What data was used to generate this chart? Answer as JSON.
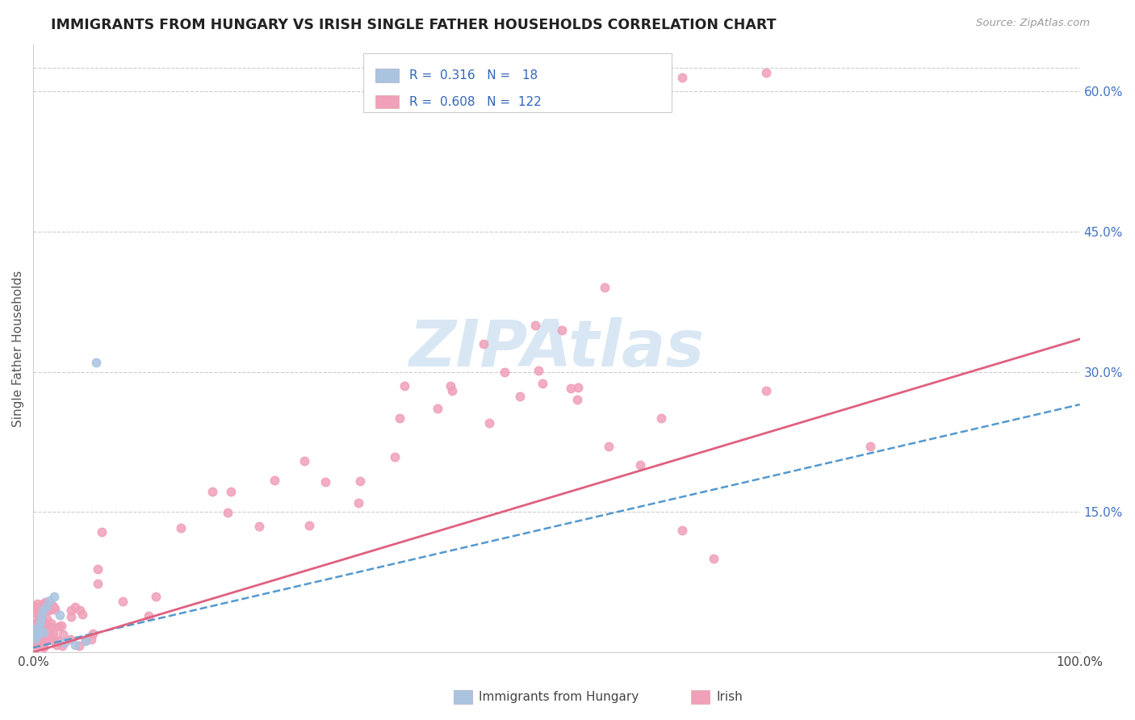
{
  "title": "IMMIGRANTS FROM HUNGARY VS IRISH SINGLE FATHER HOUSEHOLDS CORRELATION CHART",
  "source": "Source: ZipAtlas.com",
  "ylabel": "Single Father Households",
  "y_ticks": [
    0.15,
    0.3,
    0.45,
    0.6
  ],
  "y_tick_labels": [
    "15.0%",
    "30.0%",
    "45.0%",
    "60.0%"
  ],
  "x_tick_labels": [
    "0.0%",
    "100.0%"
  ],
  "legend_hun_R": "0.316",
  "legend_hun_N": "18",
  "legend_ire_R": "0.608",
  "legend_ire_N": "122",
  "hun_color": "#aac4e0",
  "ire_color": "#f0a0b8",
  "hun_line_color": "#5599cc",
  "ire_line_color": "#e06080",
  "watermark": "ZIPAtlas",
  "background_color": "#ffffff",
  "grid_color": "#cccccc",
  "xlim": [
    0.0,
    1.0
  ],
  "ylim": [
    0.0,
    0.65
  ],
  "hun_trend_y0": 0.005,
  "hun_trend_y1": 0.265,
  "ire_trend_y0": 0.0,
  "ire_trend_y1": 0.335
}
